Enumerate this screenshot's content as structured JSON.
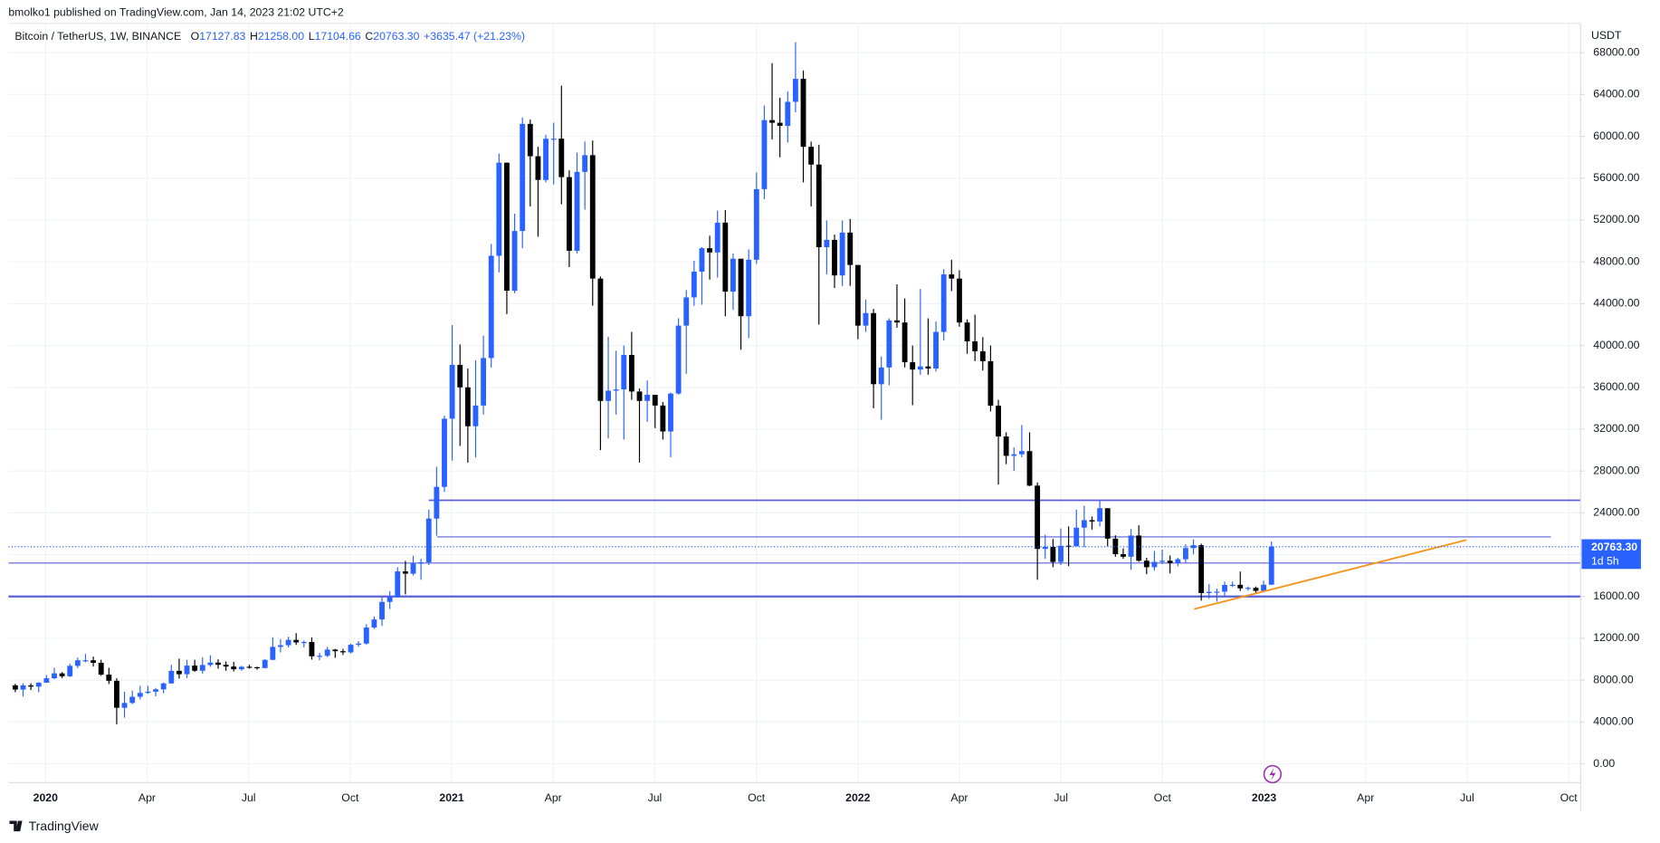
{
  "header": {
    "published": "bmolko1 published on TradingView.com, Jan 14, 2023 21:02 UTC+2",
    "logo": "TradingView"
  },
  "chart_data": {
    "type": "candlestick",
    "title": "Bitcoin / TetherUS, 1W, BINANCE",
    "legend_values": [
      {
        "key": "O",
        "value": "17127.83"
      },
      {
        "key": "H",
        "value": "21258.00"
      },
      {
        "key": "L",
        "value": "17104.66"
      },
      {
        "key": "C",
        "value": "20763.30"
      }
    ],
    "change": "+3635.47 (+21.23%)",
    "y_axis_label": "USDT",
    "up_color": "#2962ff",
    "down_color": "#000000",
    "xticks": [
      "2020",
      "Apr",
      "Jul",
      "Oct",
      "2021",
      "Apr",
      "Jul",
      "Oct",
      "2022",
      "Apr",
      "Jul",
      "Oct",
      "2023",
      "Apr",
      "Jul",
      "Oct"
    ],
    "ylim": [
      -1800,
      70000
    ],
    "yticks": [
      {
        "value": 0,
        "label": "0.00"
      },
      {
        "value": 4000,
        "label": "4000.00"
      },
      {
        "value": 8000,
        "label": "8000.00"
      },
      {
        "value": 12000,
        "label": "12000.00"
      },
      {
        "value": 16000,
        "label": "16000.00"
      },
      {
        "value": 20000,
        "label": "20000.00"
      },
      {
        "value": 24000,
        "label": "24000.00"
      },
      {
        "value": 28000,
        "label": "28000.00"
      },
      {
        "value": 32000,
        "label": "32000.00"
      },
      {
        "value": 36000,
        "label": "36000.00"
      },
      {
        "value": 40000,
        "label": "40000.00"
      },
      {
        "value": 44000,
        "label": "44000.00"
      },
      {
        "value": 48000,
        "label": "48000.00"
      },
      {
        "value": 52000,
        "label": "52000.00"
      },
      {
        "value": 56000,
        "label": "56000.00"
      },
      {
        "value": 60000,
        "label": "60000.00"
      },
      {
        "value": 64000,
        "label": "64000.00"
      },
      {
        "value": 68000,
        "label": "68000.00"
      }
    ],
    "grid": true,
    "last_price": {
      "value": 20763.3,
      "label": "20763.30"
    },
    "countdown": "1d 5h",
    "levels": [
      25200,
      21700,
      19200,
      16000
    ],
    "level_color": "#5b5fd6",
    "trendline": [
      14800,
      21400
    ],
    "trendline_color": "#f7931a",
    "ohlc": [
      [
        7500,
        7650,
        6850,
        7100
      ],
      [
        7100,
        7700,
        6430,
        7500
      ],
      [
        7500,
        7700,
        7050,
        7380
      ],
      [
        7380,
        7800,
        6850,
        7760
      ],
      [
        7760,
        8480,
        7740,
        8180
      ],
      [
        8180,
        9190,
        8100,
        8650
      ],
      [
        8650,
        8770,
        8200,
        8370
      ],
      [
        8370,
        9570,
        8300,
        9370
      ],
      [
        9370,
        10150,
        9160,
        9900
      ],
      [
        9900,
        10500,
        9700,
        9900
      ],
      [
        9900,
        10250,
        9300,
        9660
      ],
      [
        9660,
        9950,
        8410,
        8530
      ],
      [
        8530,
        9180,
        7630,
        7940
      ],
      [
        7940,
        8180,
        3780,
        5360
      ],
      [
        5360,
        6900,
        4400,
        5820
      ],
      [
        5820,
        6990,
        5700,
        6410
      ],
      [
        6410,
        7450,
        6150,
        6780
      ],
      [
        6780,
        7460,
        6700,
        6900
      ],
      [
        6900,
        7250,
        6460,
        7120
      ],
      [
        7120,
        7780,
        6750,
        7690
      ],
      [
        7690,
        9470,
        7660,
        8890
      ],
      [
        8890,
        10060,
        8150,
        8570
      ],
      [
        8570,
        9950,
        8200,
        9390
      ],
      [
        9390,
        9950,
        8800,
        8900
      ],
      [
        8900,
        10200,
        8630,
        9450
      ],
      [
        9450,
        10380,
        9280,
        9680
      ],
      [
        9680,
        9990,
        9100,
        9470
      ],
      [
        9470,
        9780,
        8900,
        9300
      ],
      [
        9300,
        9750,
        8830,
        9040
      ],
      [
        9040,
        9370,
        8900,
        9280
      ],
      [
        9280,
        9470,
        9100,
        9240
      ],
      [
        9240,
        9280,
        9000,
        9160
      ],
      [
        9160,
        10000,
        9130,
        9940
      ],
      [
        9940,
        12100,
        9920,
        11180
      ],
      [
        11180,
        11920,
        10650,
        11340
      ],
      [
        11340,
        12150,
        11120,
        11850
      ],
      [
        11850,
        12490,
        11370,
        11610
      ],
      [
        11610,
        11800,
        11130,
        11650
      ],
      [
        11650,
        12090,
        9960,
        10280
      ],
      [
        10280,
        10600,
        9900,
        10330
      ],
      [
        10330,
        11180,
        10200,
        10920
      ],
      [
        10920,
        10980,
        10130,
        10770
      ],
      [
        10770,
        11000,
        10400,
        10660
      ],
      [
        10660,
        11490,
        10550,
        11380
      ],
      [
        11380,
        11730,
        11200,
        11500
      ],
      [
        11500,
        13350,
        11400,
        13030
      ],
      [
        13030,
        14090,
        12900,
        13800
      ],
      [
        13800,
        15960,
        13200,
        15480
      ],
      [
        15480,
        16500,
        14800,
        15960
      ],
      [
        15960,
        18800,
        15900,
        18400
      ],
      [
        18400,
        19400,
        16200,
        18180
      ],
      [
        18180,
        19900,
        18000,
        19150
      ],
      [
        19150,
        19600,
        17600,
        19270
      ],
      [
        19270,
        24300,
        19000,
        23450
      ],
      [
        23450,
        28400,
        21800,
        26480
      ],
      [
        26480,
        33300,
        26000,
        33000
      ],
      [
        33000,
        41950,
        29000,
        38150
      ],
      [
        38150,
        40100,
        30400,
        36000
      ],
      [
        36000,
        37800,
        28800,
        32280
      ],
      [
        32280,
        38600,
        29300,
        34260
      ],
      [
        34260,
        40950,
        33400,
        38800
      ],
      [
        38800,
        49700,
        37900,
        48580
      ],
      [
        48580,
        58350,
        47000,
        57480
      ],
      [
        57480,
        57500,
        43000,
        45240
      ],
      [
        45240,
        52600,
        45000,
        50950
      ],
      [
        50950,
        61800,
        49300,
        61190
      ],
      [
        61190,
        61600,
        53300,
        58100
      ],
      [
        58100,
        59000,
        50400,
        55830
      ],
      [
        55830,
        60150,
        55600,
        59770
      ],
      [
        59770,
        61300,
        55400,
        59780
      ],
      [
        59780,
        64850,
        53500,
        56100
      ],
      [
        56100,
        56750,
        47500,
        49060
      ],
      [
        49060,
        58450,
        48800,
        56600
      ],
      [
        56600,
        59500,
        53000,
        58200
      ],
      [
        58200,
        59600,
        43800,
        46400
      ],
      [
        46400,
        46600,
        30000,
        34700
      ],
      [
        34700,
        40850,
        31100,
        35680
      ],
      [
        35680,
        39500,
        33400,
        35800
      ],
      [
        35800,
        40000,
        31000,
        39100
      ],
      [
        39100,
        41300,
        34800,
        35600
      ],
      [
        35600,
        35900,
        28800,
        34700
      ],
      [
        34700,
        36650,
        32700,
        35290
      ],
      [
        35290,
        35100,
        32100,
        34260
      ],
      [
        34260,
        34600,
        31000,
        31780
      ],
      [
        31780,
        35500,
        29300,
        35400
      ],
      [
        35400,
        42600,
        35300,
        41900
      ],
      [
        41900,
        45300,
        37300,
        44600
      ],
      [
        44600,
        48100,
        43800,
        47060
      ],
      [
        47060,
        49400,
        43900,
        49300
      ],
      [
        49300,
        50500,
        46300,
        48900
      ],
      [
        48900,
        52900,
        46500,
        51750
      ],
      [
        51750,
        52950,
        42800,
        45150
      ],
      [
        45150,
        48800,
        43400,
        48300
      ],
      [
        48300,
        48000,
        39600,
        42800
      ],
      [
        42800,
        49200,
        40700,
        48200
      ],
      [
        48200,
        56550,
        47800,
        54950
      ],
      [
        54950,
        62950,
        54000,
        61550
      ],
      [
        61550,
        67000,
        59700,
        61300
      ],
      [
        61300,
        63700,
        58000,
        61000
      ],
      [
        61000,
        64300,
        59400,
        63300
      ],
      [
        63300,
        69000,
        62300,
        65500
      ],
      [
        65500,
        66300,
        55600,
        59000
      ],
      [
        59000,
        59500,
        53300,
        57300
      ],
      [
        57300,
        59200,
        42000,
        49400
      ],
      [
        49400,
        51950,
        46800,
        50100
      ],
      [
        50100,
        50600,
        45500,
        46700
      ],
      [
        46700,
        51950,
        45700,
        50800
      ],
      [
        50800,
        52100,
        45700,
        47700
      ],
      [
        47700,
        47600,
        40600,
        41900
      ],
      [
        41900,
        44400,
        41300,
        43100
      ],
      [
        43100,
        43500,
        34000,
        36300
      ],
      [
        36300,
        38950,
        32900,
        37900
      ],
      [
        37900,
        42600,
        36200,
        42400
      ],
      [
        42400,
        45850,
        41700,
        42200
      ],
      [
        42200,
        44500,
        37900,
        38400
      ],
      [
        38400,
        40000,
        34300,
        37700
      ],
      [
        37700,
        45400,
        37200,
        38000
      ],
      [
        38000,
        42600,
        37200,
        37800
      ],
      [
        37800,
        42300,
        37500,
        41300
      ],
      [
        41300,
        47300,
        40500,
        46800
      ],
      [
        46800,
        48200,
        45200,
        46400
      ],
      [
        46400,
        47200,
        41800,
        42200
      ],
      [
        42200,
        42500,
        39200,
        40400
      ],
      [
        40400,
        42950,
        38500,
        39450
      ],
      [
        39450,
        40800,
        37600,
        38500
      ],
      [
        38500,
        40000,
        33700,
        34250
      ],
      [
        34250,
        34800,
        26700,
        31300
      ],
      [
        31300,
        31700,
        28650,
        29450
      ],
      [
        29450,
        30250,
        28000,
        29600
      ],
      [
        29600,
        32400,
        29300,
        29900
      ],
      [
        29900,
        31700,
        26550,
        26600
      ],
      [
        26600,
        26900,
        17600,
        20550
      ],
      [
        20550,
        21900,
        19600,
        20740
      ],
      [
        20740,
        21500,
        18800,
        19300
      ],
      [
        19300,
        22500,
        19000,
        20850
      ],
      [
        20850,
        22700,
        18900,
        20800
      ],
      [
        20800,
        24300,
        20800,
        22580
      ],
      [
        22580,
        24670,
        20700,
        23300
      ],
      [
        23300,
        23650,
        22400,
        23170
      ],
      [
        23170,
        25200,
        22700,
        24440
      ],
      [
        24440,
        24450,
        20800,
        21530
      ],
      [
        21530,
        21850,
        19800,
        20050
      ],
      [
        20050,
        20600,
        19600,
        19800
      ],
      [
        19800,
        22450,
        18550,
        21830
      ],
      [
        21830,
        22800,
        19320,
        19420
      ],
      [
        19420,
        19700,
        18130,
        18800
      ],
      [
        18800,
        20350,
        18470,
        19310
      ],
      [
        19310,
        20480,
        19100,
        19420
      ],
      [
        19420,
        19920,
        18200,
        19200
      ],
      [
        19200,
        19700,
        18900,
        19560
      ],
      [
        19560,
        21000,
        19240,
        20630
      ],
      [
        20630,
        21470,
        20030,
        20900
      ],
      [
        20900,
        21050,
        15600,
        16330
      ],
      [
        16330,
        17190,
        15800,
        16450
      ],
      [
        16450,
        16750,
        15500,
        16460
      ],
      [
        16460,
        17420,
        16000,
        17100
      ],
      [
        17100,
        17430,
        16900,
        17120
      ],
      [
        17120,
        18380,
        16530,
        16780
      ],
      [
        16780,
        16960,
        16550,
        16830
      ],
      [
        16830,
        16960,
        16300,
        16540
      ],
      [
        16540,
        17500,
        16500,
        17127.83
      ],
      [
        17127.83,
        21258,
        17104.66,
        20763.3
      ]
    ]
  }
}
